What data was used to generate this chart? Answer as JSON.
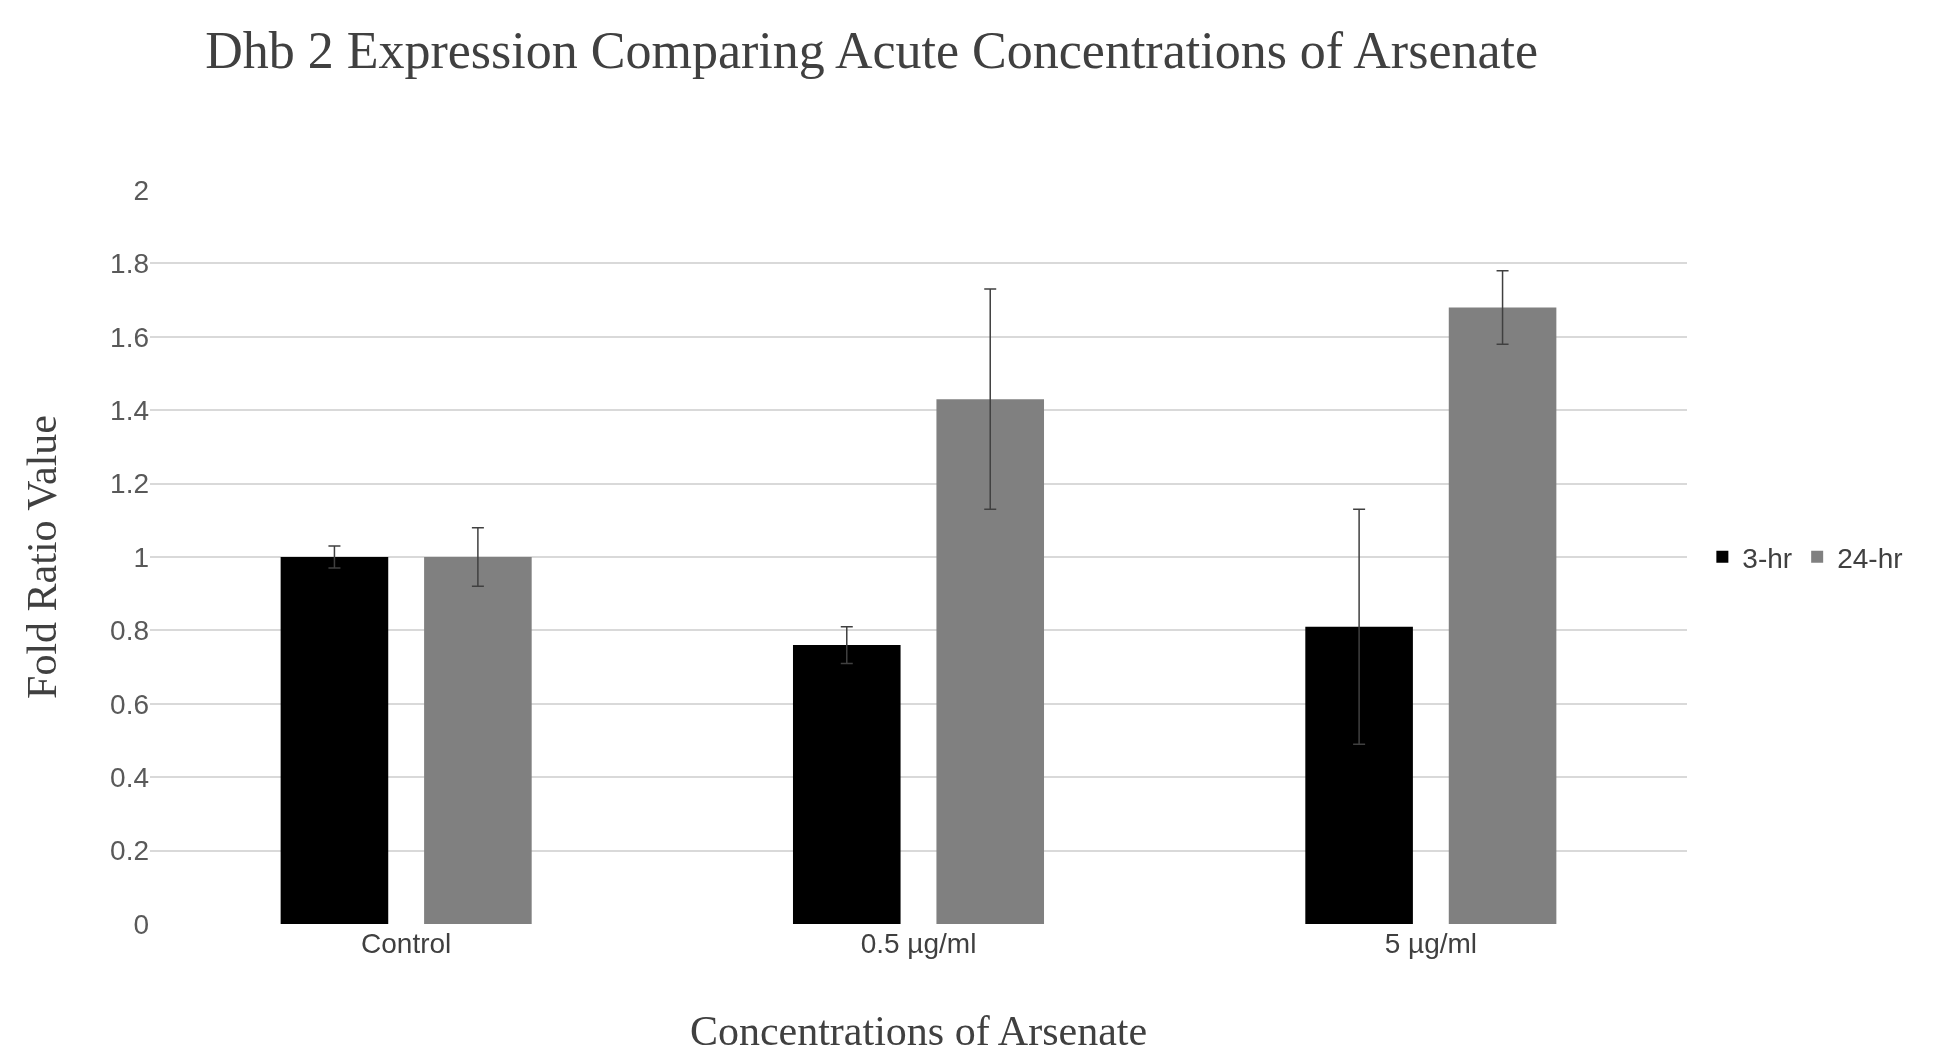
{
  "chart_data": {
    "type": "bar",
    "title": "Dhb 2 Expression Comparing Acute Concentrations of Arsenate",
    "xlabel": "Concentrations of Arsenate",
    "ylabel": "Fold Ratio Value",
    "categories": [
      "Control",
      "0.5 µg/ml",
      "5 µg/ml"
    ],
    "series": [
      {
        "name": "3-hr",
        "color": "#000000",
        "values": [
          1.0,
          0.76,
          0.81
        ],
        "errors": [
          0.03,
          0.05,
          0.32
        ]
      },
      {
        "name": "24-hr",
        "color": "#808080",
        "values": [
          1.0,
          1.43,
          1.68
        ],
        "errors": [
          0.08,
          0.3,
          0.1
        ]
      }
    ],
    "ylim": [
      0,
      2
    ],
    "yticks": [
      0,
      0.2,
      0.4,
      0.6,
      0.8,
      1,
      1.2,
      1.4,
      1.6,
      1.8,
      2
    ],
    "grid": "y",
    "legend": "right"
  }
}
